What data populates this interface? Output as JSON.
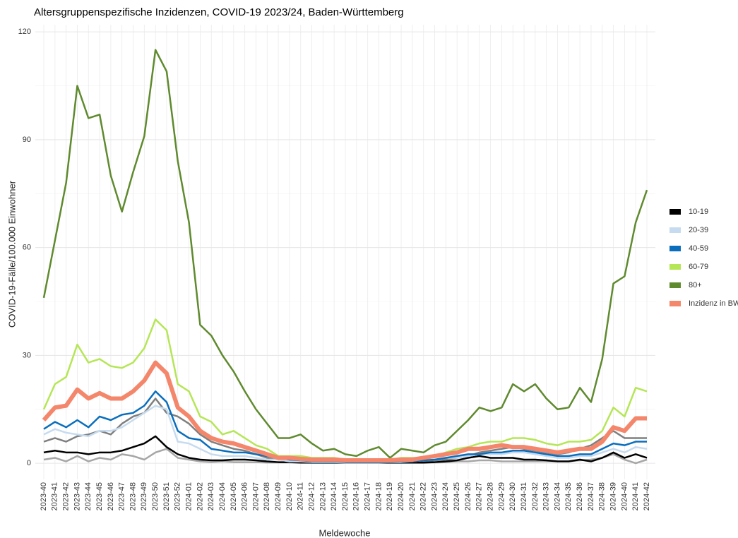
{
  "chart_data": {
    "type": "line",
    "title": "Altersgruppenspezifische Inzidenzen, COVID-19 2023/24, Baden-Württemberg",
    "x_label": "Meldewoche",
    "y_label": "COVID-19-Fälle/100.000 Einwohner",
    "categories": [
      "2023-40",
      "2023-41",
      "2023-42",
      "2023-43",
      "2023-44",
      "2023-45",
      "2023-46",
      "2023-47",
      "2023-48",
      "2023-49",
      "2023-50",
      "2023-51",
      "2023-52",
      "2024-01",
      "2024-02",
      "2024-03",
      "2024-04",
      "2024-05",
      "2024-06",
      "2024-07",
      "2024-08",
      "2024-09",
      "2024-10",
      "2024-11",
      "2024-12",
      "2024-13",
      "2024-14",
      "2024-15",
      "2024-16",
      "2024-17",
      "2024-18",
      "2024-19",
      "2024-20",
      "2024-21",
      "2024-22",
      "2024-23",
      "2024-24",
      "2024-25",
      "2024-26",
      "2024-27",
      "2024-28",
      "2024-29",
      "2024-30",
      "2024-31",
      "2024-32",
      "2024-33",
      "2024-34",
      "2024-35",
      "2024-36",
      "2024-37",
      "2024-38",
      "2024-39",
      "2024-40",
      "2024-41",
      "2024-42"
    ],
    "ylim": [
      -4.5,
      122
    ],
    "yticks": [
      0,
      30,
      60,
      90,
      120
    ],
    "grid": true,
    "legend": "right",
    "series": [
      {
        "color": "#7f7f7f",
        "values": [
          6,
          7,
          6,
          7.5,
          8,
          9,
          8,
          11,
          13,
          14,
          18,
          14,
          13,
          11,
          8,
          6,
          5,
          4,
          3.5,
          2.5,
          1.5,
          1,
          0.8,
          0.5,
          0.5,
          0.5,
          0.5,
          0.5,
          0.5,
          0.5,
          0.5,
          0.5,
          0.5,
          0.5,
          0.5,
          0.8,
          1,
          1.5,
          2,
          3,
          3.5,
          4,
          4.5,
          4,
          3.5,
          3,
          2.5,
          3,
          4,
          5,
          7,
          9,
          7,
          7,
          7
        ]
      },
      {
        "color": "#a6a6a6",
        "values": [
          1,
          1.5,
          0.5,
          2,
          0.5,
          1.5,
          1,
          2.5,
          2,
          1,
          3,
          4,
          1.5,
          1,
          0.5,
          0.3,
          0.5,
          0.3,
          0.3,
          0.3,
          0.2,
          0.2,
          0.2,
          0.1,
          0.1,
          0.1,
          0.1,
          0.1,
          0.1,
          0.1,
          0.1,
          0.1,
          0.1,
          0.1,
          0.1,
          0.2,
          0.3,
          0.5,
          0.5,
          0.8,
          0.8,
          0.5,
          0.5,
          0.5,
          0.5,
          0.5,
          0.5,
          0.5,
          0.8,
          1,
          1.5,
          2.5,
          1,
          0,
          1
        ]
      },
      {
        "name": "10-19",
        "color": "#000000",
        "values": [
          3,
          3.5,
          3,
          3,
          2.5,
          3,
          3,
          3.5,
          4.5,
          5.5,
          7.5,
          4.5,
          2.5,
          1.5,
          1,
          0.8,
          0.8,
          1,
          1,
          0.8,
          0.5,
          0.3,
          0.3,
          0.2,
          0.2,
          0.2,
          0.2,
          0.2,
          0.2,
          0.2,
          0.2,
          0.2,
          0.2,
          0.2,
          0.2,
          0.3,
          0.5,
          0.8,
          1.5,
          2,
          1.5,
          1.5,
          1.5,
          1,
          1,
          0.8,
          0.5,
          0.5,
          1,
          0.5,
          1.5,
          3,
          1.5,
          2.5,
          1.5
        ]
      },
      {
        "name": "20-39",
        "color": "#c6dbef",
        "values": [
          8,
          9.5,
          8.5,
          8,
          7.5,
          9,
          9,
          10,
          12,
          14,
          16,
          15,
          6,
          5.5,
          4,
          2.5,
          2,
          2,
          2,
          1.5,
          1,
          1,
          0.5,
          0.5,
          0.3,
          0.3,
          0.3,
          0.2,
          0.2,
          0.2,
          0.2,
          0.3,
          0.3,
          0.5,
          0.8,
          1,
          1.5,
          1.5,
          2,
          2.5,
          2.5,
          2.5,
          3,
          3,
          2.5,
          2,
          1.5,
          1.5,
          2,
          2,
          3,
          4,
          3,
          4.5,
          4
        ]
      },
      {
        "name": "40-59",
        "color": "#0a6ebd",
        "values": [
          9.5,
          11.5,
          10,
          12,
          10,
          13,
          12,
          13.5,
          14,
          16,
          20,
          17,
          9,
          7,
          6.5,
          4,
          3.5,
          3,
          3,
          2.5,
          2,
          1.5,
          1,
          0.8,
          0.5,
          0.5,
          0.5,
          0.3,
          0.3,
          0.3,
          0.3,
          0.3,
          0.5,
          0.5,
          0.8,
          1,
          1.5,
          2,
          2.5,
          2.5,
          3,
          3,
          3.5,
          3.5,
          3,
          2.5,
          2,
          2,
          2.5,
          2.5,
          4,
          5.5,
          5,
          6,
          6
        ]
      },
      {
        "name": "60-79",
        "color": "#b5e655",
        "values": [
          15,
          22,
          24,
          33,
          28,
          29,
          27,
          26.5,
          28,
          32,
          40,
          37,
          22,
          20,
          13,
          11.5,
          8,
          9,
          7,
          5,
          4,
          2,
          2,
          2,
          1.5,
          1.5,
          1.5,
          1,
          1,
          1,
          1,
          1,
          1.5,
          1.5,
          1.5,
          2,
          3,
          4,
          4.5,
          5.5,
          6,
          6,
          7,
          7,
          6.5,
          5.5,
          5,
          6,
          6,
          6.5,
          9,
          15.5,
          13,
          21,
          20
        ]
      },
      {
        "name": "80+",
        "color": "#5f8a2e",
        "values": [
          46,
          62,
          78,
          105,
          96,
          97,
          80,
          70,
          81,
          91,
          115,
          109,
          84,
          67,
          38.5,
          35.5,
          30,
          25.5,
          20,
          15,
          11,
          7,
          7,
          8,
          5.5,
          3.5,
          4,
          2.5,
          2,
          3.5,
          4.5,
          1.5,
          4,
          3.5,
          3,
          5,
          6,
          9,
          12,
          15.5,
          14.5,
          15.5,
          22,
          20,
          22,
          18,
          15,
          15.5,
          21,
          17,
          29,
          50,
          52,
          67,
          76
        ]
      },
      {
        "name": "Inzidenz in BW",
        "color": "#f4866b",
        "values": [
          12,
          15.5,
          16,
          20.5,
          18,
          19.5,
          18,
          18,
          20,
          23,
          28,
          25,
          15.5,
          13,
          9,
          7,
          6,
          5.5,
          4.5,
          3.5,
          2.5,
          1.5,
          1.5,
          1.2,
          1,
          1,
          1,
          0.8,
          0.8,
          0.8,
          0.8,
          0.8,
          1,
          1,
          1.5,
          2,
          2.5,
          3,
          4,
          4,
          4.5,
          5,
          4.5,
          4.5,
          4,
          3.5,
          3,
          3.5,
          4,
          4,
          6,
          10,
          9,
          12.5,
          12.5
        ]
      }
    ]
  }
}
